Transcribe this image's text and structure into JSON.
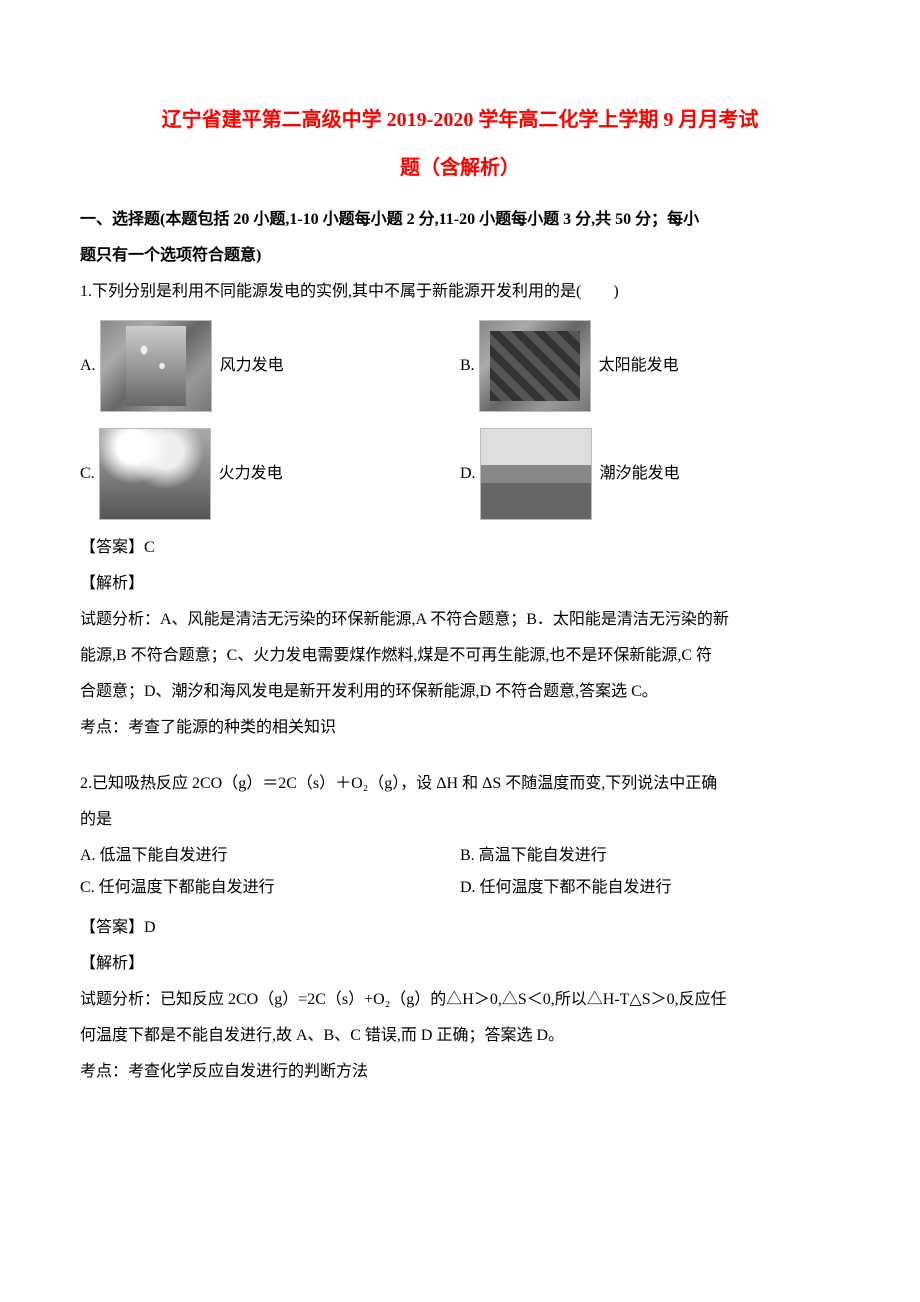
{
  "title_line1": "辽宁省建平第二高级中学 2019-2020 学年高二化学上学期 9 月月考试",
  "title_line2": "题（含解析）",
  "section_header_l1": "一、选择题(本题包括 20 小题,1-10 小题每小题 2 分,11-20 小题每小题 3 分,共 50 分；每小",
  "section_header_l2": "题只有一个选项符合题意)",
  "q1": {
    "stem": "1.下列分别是利用不同能源发电的实例,其中不属于新能源开发利用的是(　　)",
    "opts": {
      "a_label": "A.",
      "a_text": "风力发电",
      "b_label": "B.",
      "b_text": "太阳能发电",
      "c_label": "C.",
      "c_text": "火力发电",
      "d_label": "D.",
      "d_text": "潮汐能发电"
    },
    "answer": "【答案】C",
    "analysis_label": "【解析】",
    "analysis_body_l1": "试题分析：A、风能是清洁无污染的环保新能源,A 不符合题意；B．太阳能是清洁无污染的新",
    "analysis_body_l2": "能源,B 不符合题意；C、火力发电需要煤作燃料,煤是不可再生能源,也不是环保新能源,C 符",
    "analysis_body_l3": "合题意；D、潮汐和海风发电是新开发利用的环保新能源,D 不符合题意,答案选 C。",
    "point": "考点：考查了能源的种类的相关知识"
  },
  "q2": {
    "stem_l1": "2.已知吸热反应 2CO（g）＝2C（s）＋O₂（g），设 ΔH 和 ΔS 不随温度而变,下列说法中正确",
    "stem_l2": "的是",
    "opts": {
      "a": "A. 低温下能自发进行",
      "b": "B. 高温下能自发进行",
      "c": "C. 任何温度下都能自发进行",
      "d": "D. 任何温度下都不能自发进行"
    },
    "answer": "【答案】D",
    "analysis_label": "【解析】",
    "analysis_body_l1": "试题分析：已知反应 2CO（g）=2C（s）+O₂（g）的△H＞0,△S＜0,所以△H-T△S＞0,反应任",
    "analysis_body_l2": "何温度下都是不能自发进行,故 A、B、C 错误,而 D 正确；答案选 D。",
    "point": "考点：考查化学反应自发进行的判断方法"
  }
}
